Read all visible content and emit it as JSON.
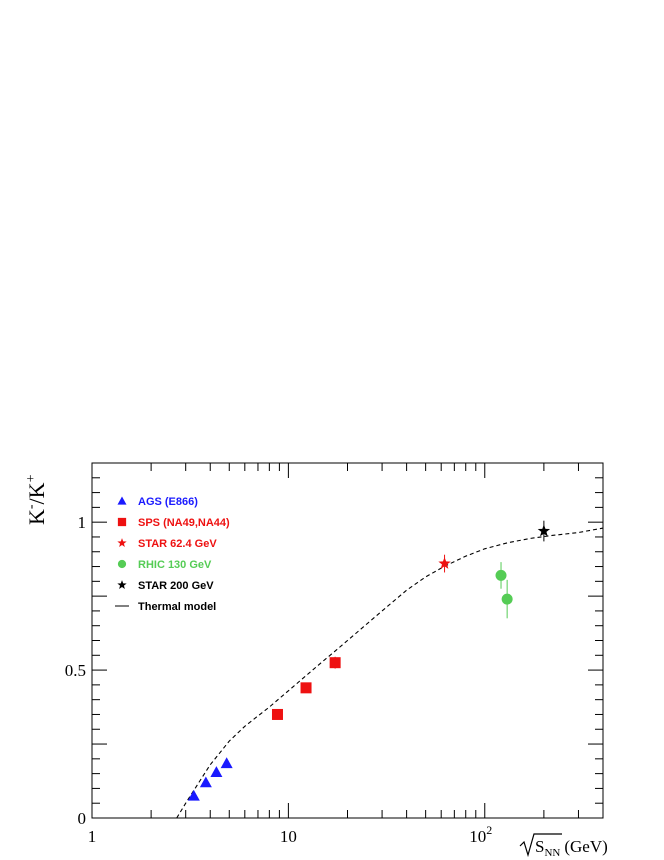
{
  "chart_data": {
    "type": "scatter",
    "title": "",
    "xlabel": {
      "root": "S",
      "sub": "NN",
      "unit": "(GeV)"
    },
    "ylabel": {
      "base1": "K",
      "sup1": "-",
      "sep": "/",
      "base2": "K",
      "sup2": "+"
    },
    "xscale": "log",
    "xlim": [
      1,
      400
    ],
    "ylim": [
      0,
      1.2
    ],
    "grid": false,
    "legend_position": "top-left",
    "x_ticks": [
      {
        "value": 1,
        "label": "1",
        "sup": ""
      },
      {
        "value": 10,
        "label": "10",
        "sup": ""
      },
      {
        "value": 100,
        "label": "10",
        "sup": "2"
      }
    ],
    "y_ticks": [
      {
        "value": 0,
        "label": "0"
      },
      {
        "value": 0.5,
        "label": "0.5"
      },
      {
        "value": 1,
        "label": "1"
      }
    ],
    "series": [
      {
        "name": "AGS (E866)",
        "color": "#1a1aff",
        "marker": "triangle",
        "points": [
          {
            "x": 3.3,
            "y": 0.075,
            "err": 0.01
          },
          {
            "x": 3.8,
            "y": 0.12,
            "err": 0.01
          },
          {
            "x": 4.3,
            "y": 0.155,
            "err": 0.01
          },
          {
            "x": 4.85,
            "y": 0.185,
            "err": 0.01
          }
        ]
      },
      {
        "name": "SPS (NA49,NA44)",
        "color": "#ee1111",
        "marker": "square",
        "points": [
          {
            "x": 8.8,
            "y": 0.35,
            "err": 0.015
          },
          {
            "x": 12.3,
            "y": 0.44,
            "err": 0.015
          },
          {
            "x": 17.3,
            "y": 0.525,
            "err": 0.02
          }
        ]
      },
      {
        "name": "STAR 62.4 GeV",
        "color": "#ee1111",
        "marker": "star",
        "points": [
          {
            "x": 62.4,
            "y": 0.86,
            "err": 0.03
          }
        ]
      },
      {
        "name": "RHIC 130 GeV",
        "color": "#55cc55",
        "marker": "circle",
        "points": [
          {
            "x": 121,
            "y": 0.82,
            "err": 0.045
          },
          {
            "x": 130,
            "y": 0.74,
            "err": 0.065
          }
        ]
      },
      {
        "name": "STAR 200 GeV",
        "color": "#000000",
        "marker": "star",
        "points": [
          {
            "x": 200,
            "y": 0.97,
            "err": 0.035
          }
        ]
      },
      {
        "name": "Thermal model",
        "color": "#000000",
        "marker": "dashed-line",
        "points": [
          {
            "x": 2.7,
            "y": 0.0
          },
          {
            "x": 3.0,
            "y": 0.05
          },
          {
            "x": 3.5,
            "y": 0.12
          },
          {
            "x": 4.0,
            "y": 0.18
          },
          {
            "x": 5.0,
            "y": 0.26
          },
          {
            "x": 6.0,
            "y": 0.31
          },
          {
            "x": 7.0,
            "y": 0.345
          },
          {
            "x": 8.0,
            "y": 0.375
          },
          {
            "x": 10.0,
            "y": 0.43
          },
          {
            "x": 12.0,
            "y": 0.475
          },
          {
            "x": 15.0,
            "y": 0.53
          },
          {
            "x": 17.0,
            "y": 0.56
          },
          {
            "x": 20.0,
            "y": 0.6
          },
          {
            "x": 30.0,
            "y": 0.7
          },
          {
            "x": 40.0,
            "y": 0.77
          },
          {
            "x": 50.0,
            "y": 0.815
          },
          {
            "x": 62.0,
            "y": 0.85
          },
          {
            "x": 80.0,
            "y": 0.885
          },
          {
            "x": 100.0,
            "y": 0.91
          },
          {
            "x": 130.0,
            "y": 0.93
          },
          {
            "x": 170.0,
            "y": 0.945
          },
          {
            "x": 220.0,
            "y": 0.955
          },
          {
            "x": 300.0,
            "y": 0.965
          },
          {
            "x": 400.0,
            "y": 0.98
          }
        ]
      }
    ]
  }
}
